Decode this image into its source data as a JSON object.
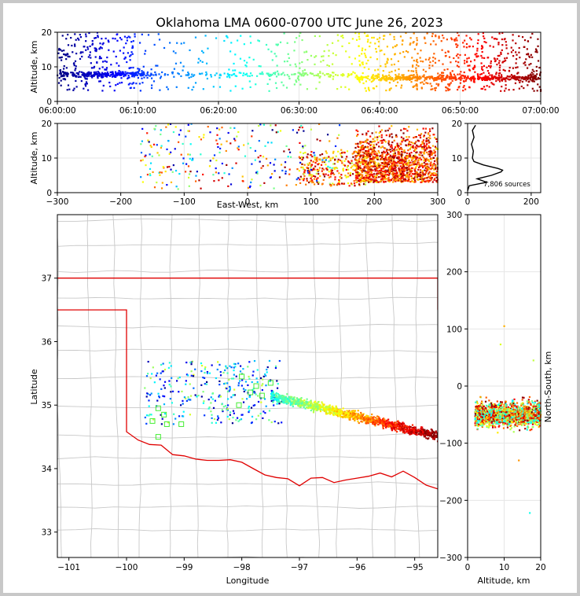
{
  "title": "Oklahoma LMA 0600-0700 UTC June 26, 2023",
  "colors": {
    "frame_bg": "#c8c8c8",
    "state_border": "#e00000",
    "county": "#c8c8c8",
    "stations": "#44ee33"
  },
  "chart_data": [
    {
      "id": "time-altitude",
      "type": "scatter",
      "xlabel": "",
      "ylabel": "Altitude, km",
      "x_ticks": [
        "06:00:00",
        "06:10:00",
        "06:20:00",
        "06:30:00",
        "06:40:00",
        "06:50:00",
        "07:00:00"
      ],
      "xlim": [
        "06:00:00",
        "07:00:00"
      ],
      "ylim": [
        0,
        20
      ],
      "y_ticks": [
        0,
        10,
        20
      ],
      "colormap": "jet (time of source)",
      "note_series": [
        {
          "x": "06:00:00-06:10:00",
          "y_range": [
            3,
            20
          ],
          "dense_band_km": 7.5,
          "color": "blue"
        },
        {
          "x": "06:10:00-06:20:00",
          "y_range": [
            3,
            20
          ],
          "dense_band_km": 8,
          "color": "deepskyblue"
        },
        {
          "x": "06:20:00-06:30:00",
          "y_range": [
            4,
            20
          ],
          "dense_band_km": 8,
          "color": "cyan"
        },
        {
          "x": "06:30:00-06:40:00",
          "y_range": [
            4,
            20
          ],
          "dense_band_km": 8,
          "color": "greenyellow"
        },
        {
          "x": "06:40:00-06:50:00",
          "y_range": [
            2,
            20
          ],
          "dense_band_km": 6.5,
          "color": "orange"
        },
        {
          "x": "06:50:00-07:00:00",
          "y_range": [
            3,
            20
          ],
          "dense_band_km": 7,
          "color": "darkred"
        }
      ]
    },
    {
      "id": "ew-altitude",
      "type": "scatter",
      "xlabel": "East-West, km",
      "ylabel": "Altitude, km",
      "xlim": [
        -300,
        300
      ],
      "ylim": [
        0,
        20
      ],
      "x_ticks": [
        "−300",
        "−200",
        "−100",
        "0",
        "100",
        "200",
        "300"
      ],
      "y_ticks": [
        0,
        10,
        20
      ]
    },
    {
      "id": "altitude-histogram",
      "type": "line",
      "xlim": [
        0,
        230
      ],
      "ylim": [
        0,
        20
      ],
      "x_ticks": [
        0,
        200
      ],
      "y_ticks": [
        0,
        10,
        20
      ],
      "annotation": "7,806 sources",
      "profile": [
        {
          "alt": 0.5,
          "count": 0
        },
        {
          "alt": 2,
          "count": 5
        },
        {
          "alt": 3,
          "count": 60
        },
        {
          "alt": 4,
          "count": 30
        },
        {
          "alt": 5,
          "count": 75
        },
        {
          "alt": 6,
          "count": 105
        },
        {
          "alt": 6.5,
          "count": 110
        },
        {
          "alt": 7,
          "count": 95
        },
        {
          "alt": 8,
          "count": 50
        },
        {
          "alt": 9,
          "count": 20
        },
        {
          "alt": 10,
          "count": 15
        },
        {
          "alt": 12,
          "count": 18
        },
        {
          "alt": 14,
          "count": 12
        },
        {
          "alt": 16,
          "count": 20
        },
        {
          "alt": 18,
          "count": 15
        },
        {
          "alt": 19.5,
          "count": 25
        }
      ]
    },
    {
      "id": "plan-view",
      "type": "scatter",
      "xlabel": "Longitude",
      "ylabel": "Latitude",
      "xlim": [
        -101.2,
        -94.6
      ],
      "ylim": [
        32.6,
        38
      ],
      "x_ticks": [
        "−101",
        "−100",
        "−99",
        "−98",
        "−97",
        "−96",
        "−95"
      ],
      "y_ticks": [
        "33",
        "34",
        "35",
        "36",
        "37"
      ]
    },
    {
      "id": "ns-altitude",
      "type": "scatter",
      "xlabel": "Altitude, km",
      "ylabel": "North-South, km",
      "xlim": [
        0,
        20
      ],
      "ylim": [
        -300,
        300
      ],
      "x_ticks": [
        "0",
        "10",
        "20"
      ],
      "y_ticks": [
        "−300",
        "−200",
        "−100",
        "0",
        "100",
        "200",
        "300"
      ]
    }
  ]
}
